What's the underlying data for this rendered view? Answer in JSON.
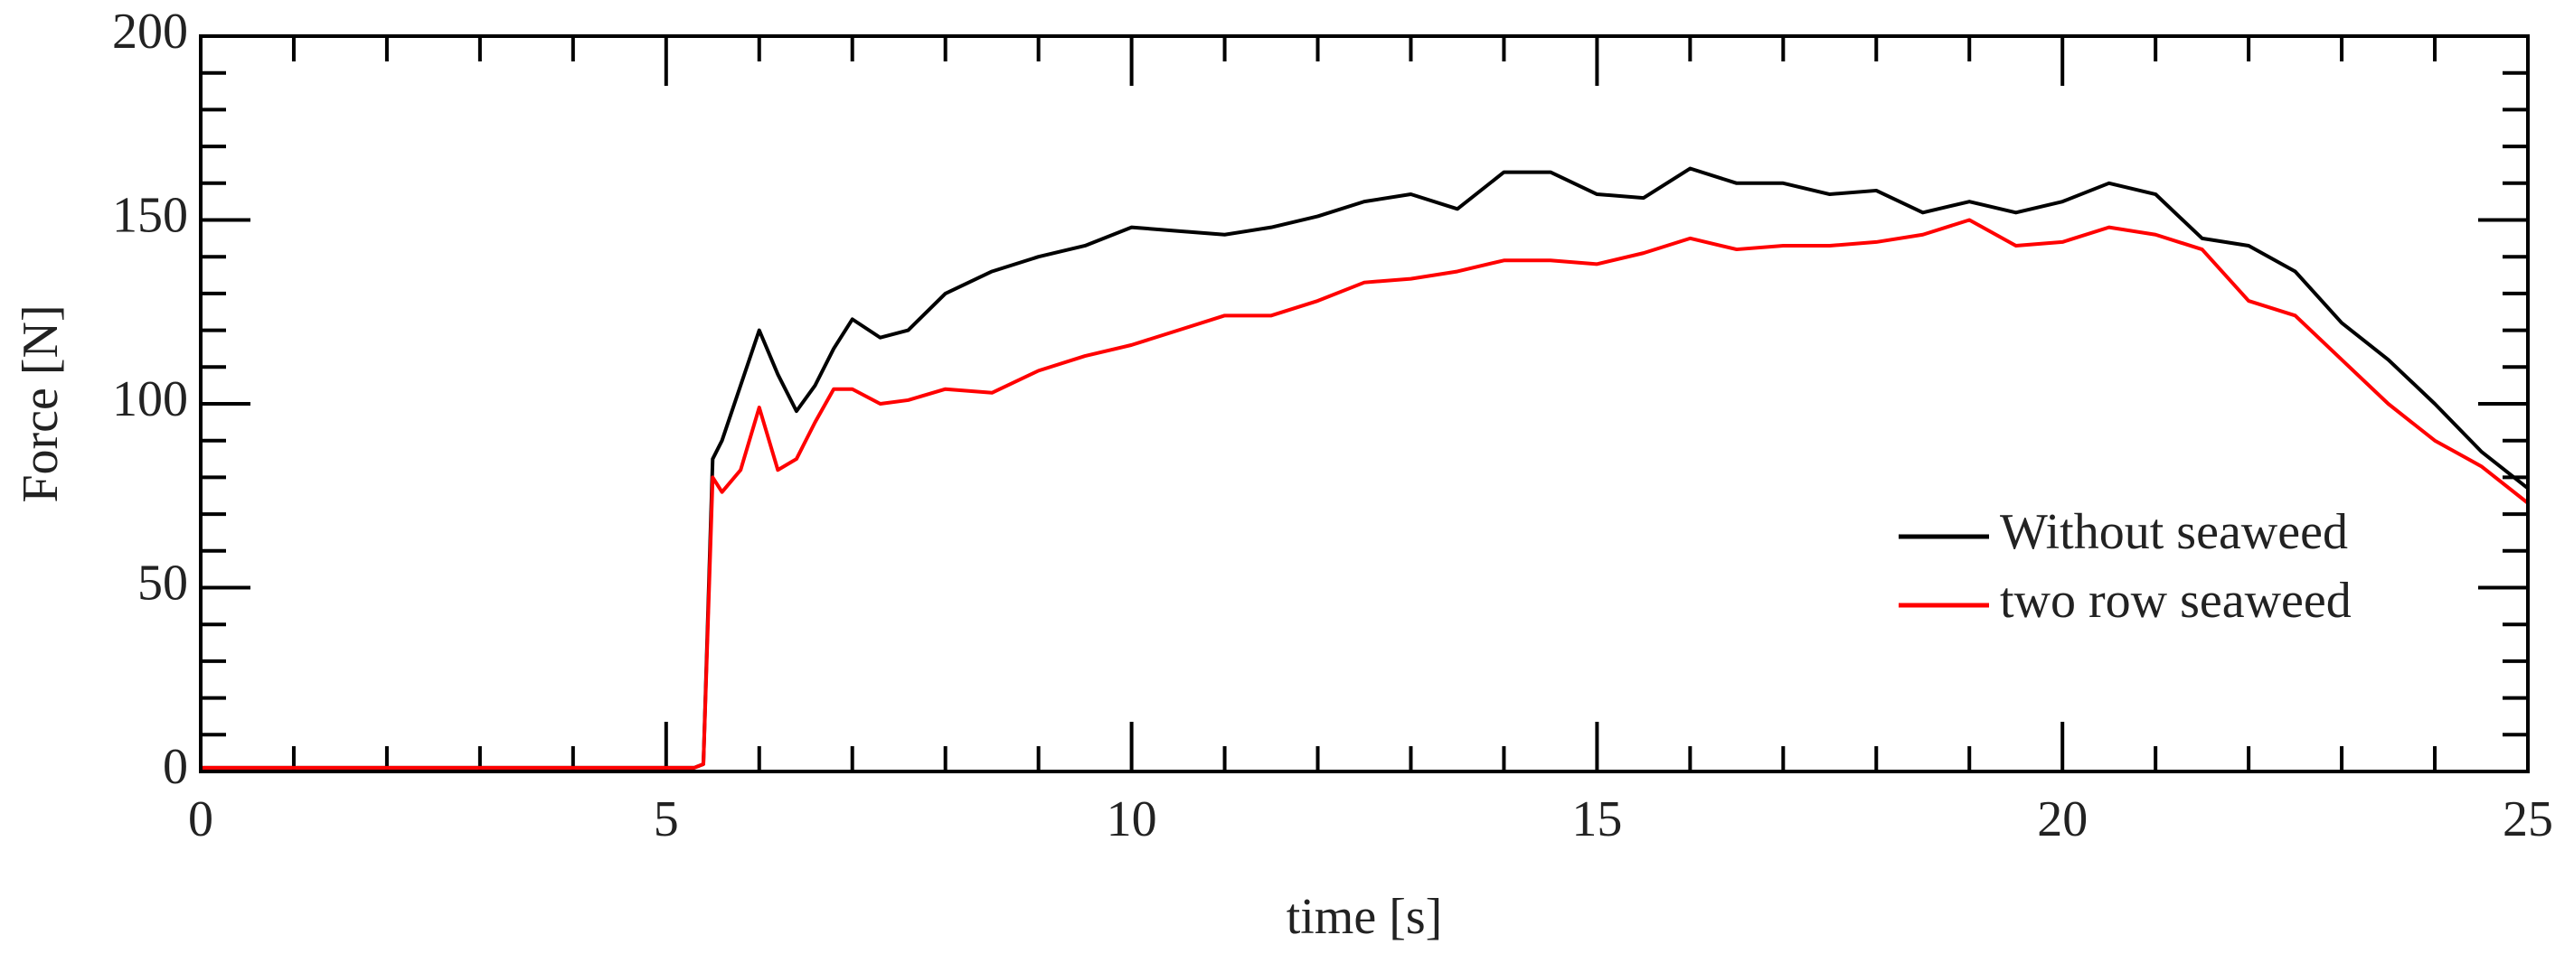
{
  "chart_data": {
    "type": "line",
    "xlabel": "time [s]",
    "ylabel": "Force [N]",
    "x": [
      0,
      1,
      2,
      3,
      4,
      5,
      5.3,
      5.4,
      5.5,
      5.6,
      5.8,
      6.0,
      6.2,
      6.4,
      6.6,
      6.8,
      7.0,
      7.3,
      7.6,
      8,
      8.5,
      9,
      9.5,
      10,
      10.5,
      11,
      11.5,
      12,
      12.5,
      13,
      13.5,
      14,
      14.5,
      15,
      15.5,
      16,
      16.5,
      17,
      17.5,
      18,
      18.5,
      19,
      19.5,
      20,
      20.5,
      21,
      21.5,
      22,
      22.5,
      23,
      23.5,
      24,
      24.5,
      25
    ],
    "series": [
      {
        "name": "Without seaweed",
        "color": "#000000",
        "values": [
          1,
          1,
          1,
          1,
          1,
          1,
          1,
          2,
          85,
          90,
          105,
          120,
          108,
          98,
          105,
          115,
          123,
          118,
          120,
          130,
          136,
          140,
          143,
          148,
          147,
          146,
          148,
          151,
          155,
          157,
          153,
          163,
          163,
          157,
          156,
          164,
          160,
          160,
          157,
          158,
          152,
          155,
          152,
          155,
          160,
          157,
          145,
          143,
          136,
          122,
          112,
          100,
          87,
          77
        ]
      },
      {
        "name": "two row seaweed",
        "color": "#ff0000",
        "values": [
          1,
          1,
          1,
          1,
          1,
          1,
          1,
          2,
          80,
          76,
          82,
          99,
          82,
          85,
          95,
          104,
          104,
          100,
          101,
          104,
          103,
          109,
          113,
          116,
          120,
          124,
          124,
          128,
          133,
          134,
          136,
          139,
          139,
          138,
          141,
          145,
          142,
          143,
          143,
          144,
          146,
          150,
          143,
          144,
          148,
          146,
          142,
          128,
          124,
          112,
          100,
          90,
          83,
          73
        ]
      }
    ],
    "xlim": [
      0,
      25
    ],
    "xticks": [
      0,
      5,
      10,
      15,
      20,
      25
    ],
    "xminorticks": [
      1,
      2,
      3,
      4,
      6,
      7,
      8,
      9,
      11,
      12,
      13,
      14,
      16,
      17,
      18,
      19,
      21,
      22,
      23,
      24
    ],
    "ylim": [
      0,
      200
    ],
    "yticks": [
      0,
      50,
      100,
      150,
      200
    ],
    "yminorticks": [
      10,
      20,
      30,
      40,
      60,
      70,
      80,
      90,
      110,
      120,
      130,
      140,
      160,
      170,
      180,
      190
    ],
    "legend": "lower right"
  }
}
